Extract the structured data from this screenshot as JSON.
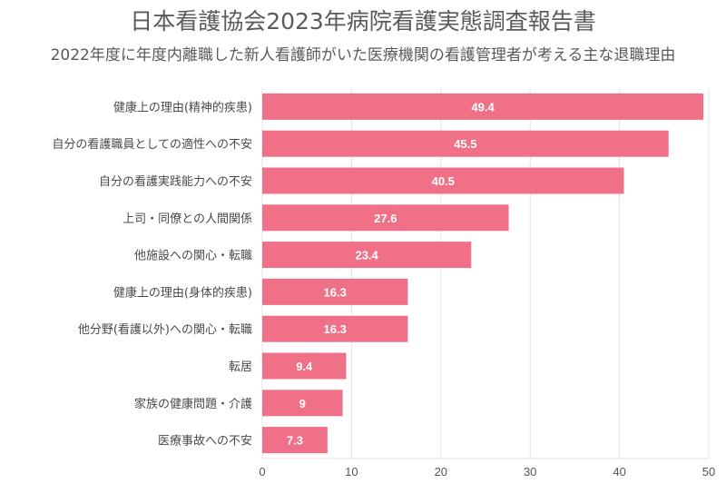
{
  "chart_data": {
    "type": "bar",
    "orientation": "horizontal",
    "title": "日本看護協会2023年病院看護実態調査報告書",
    "subtitle": "2022年度に年度内離職した新人看護師がいた医療機関の看護管理者が考える主な退職理由",
    "categories": [
      "健康上の理由(精神的疾患)",
      "自分の看護職員としての適性への不安",
      "自分の看護実践能力への不安",
      "上司・同僚との人間関係",
      "他施設への関心・転職",
      "健康上の理由(身体的疾患)",
      "他分野(看護以外)への関心・転職",
      "転居",
      "家族の健康問題・介護",
      "医療事故への不安"
    ],
    "values": [
      49.4,
      45.5,
      40.5,
      27.6,
      23.4,
      16.3,
      16.3,
      9.4,
      9,
      7.3
    ],
    "value_labels": [
      "49.4",
      "45.5",
      "40.5",
      "27.6",
      "23.4",
      "16.3",
      "16.3",
      "9.4",
      "9",
      "7.3"
    ],
    "xlim": [
      0,
      50
    ],
    "xticks": [
      0,
      10,
      20,
      30,
      40,
      50
    ],
    "grid": true,
    "bar_color": "#f07088",
    "grid_color": "#e3e3e3"
  }
}
